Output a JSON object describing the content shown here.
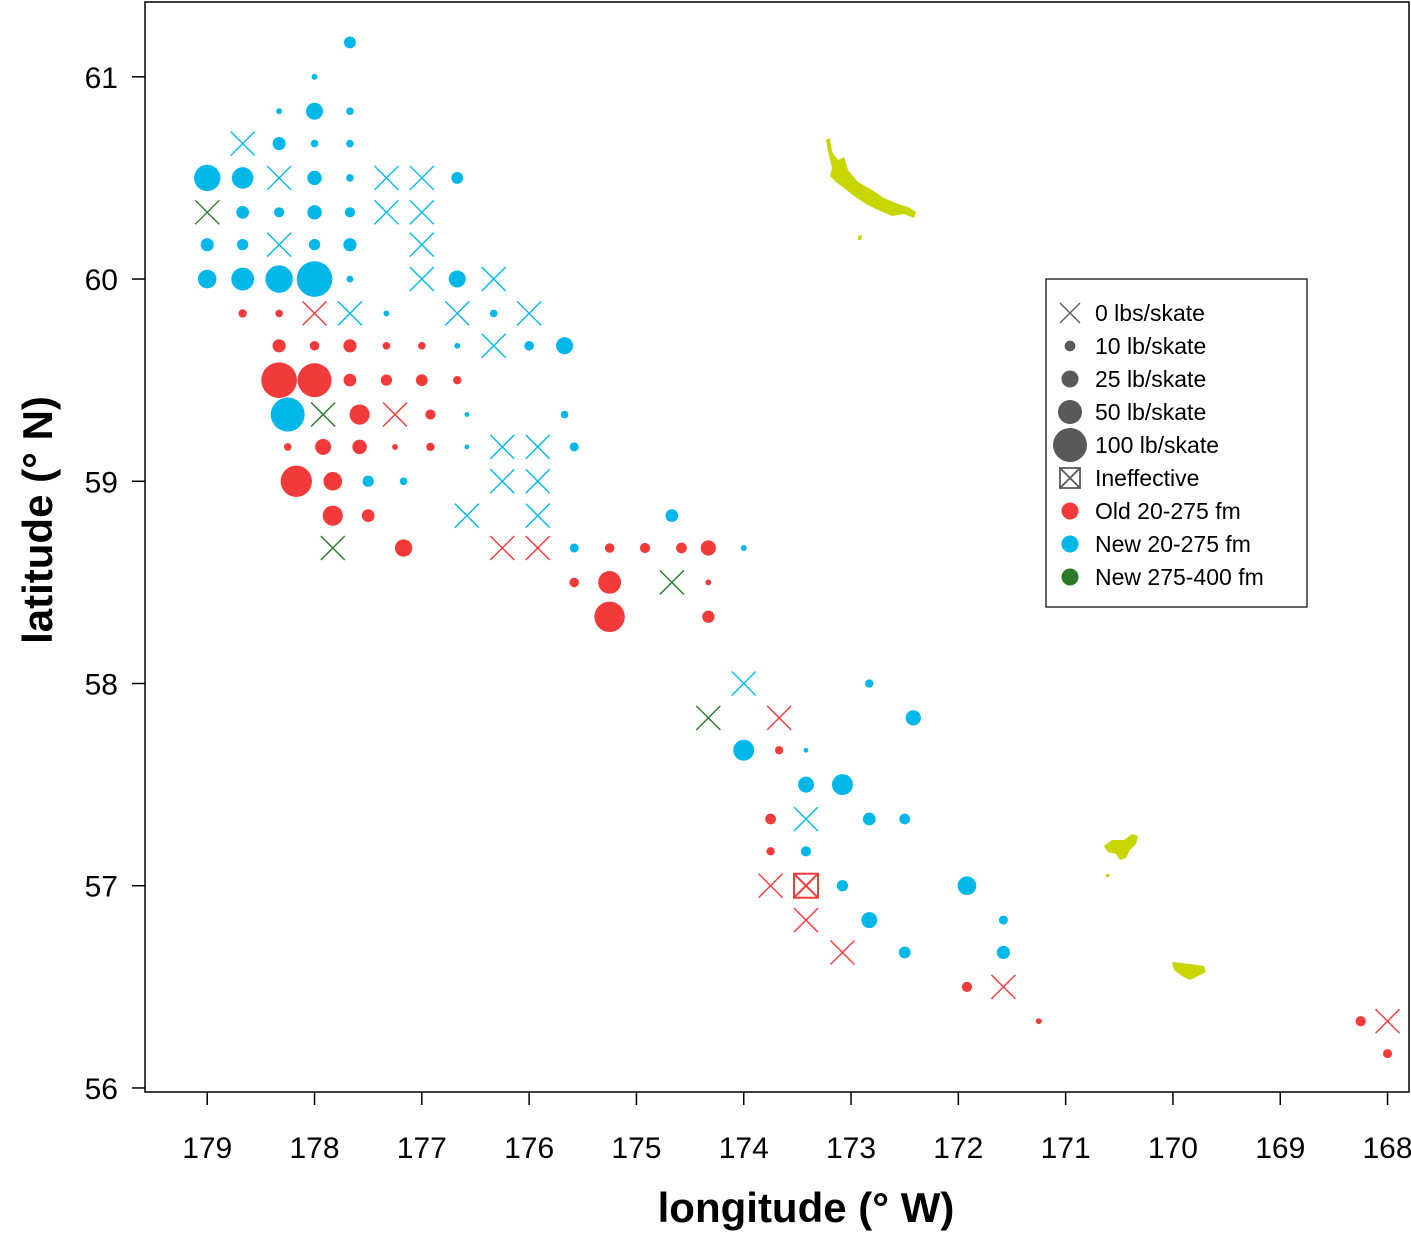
{
  "chart_data": {
    "type": "scatter",
    "xlabel": "longitude (° W)",
    "ylabel": "latitude (° N)",
    "xlim": [
      179.58,
      167.8
    ],
    "ylim": [
      55.98,
      61.37
    ],
    "x_reversed": true,
    "xticks": [
      "179",
      "178",
      "177",
      "176",
      "175",
      "174",
      "173",
      "172",
      "171",
      "170",
      "169",
      "168"
    ],
    "yticks": [
      "56",
      "57",
      "58",
      "59",
      "60",
      "61"
    ],
    "grid": false,
    "legend_position": "right",
    "colors": {
      "old": "#f23a3a",
      "new": "#00b7ea",
      "deep": "#2a7a2a",
      "land": "#c7d600",
      "legend_gray": "#595959"
    },
    "legend": [
      {
        "label": "0 lbs/skate",
        "symbol": "x"
      },
      {
        "label": "10 lb/skate",
        "symbol": "dot",
        "cpue": 10
      },
      {
        "label": "25 lb/skate",
        "symbol": "dot",
        "cpue": 25
      },
      {
        "label": "50 lb/skate",
        "symbol": "dot",
        "cpue": 50
      },
      {
        "label": "100 lb/skate",
        "symbol": "dot",
        "cpue": 100
      },
      {
        "label": "Ineffective",
        "symbol": "boxx"
      },
      {
        "label": "Old 20-275 fm",
        "symbol": "color",
        "series": "old"
      },
      {
        "label": "New 20-275 fm",
        "symbol": "color",
        "series": "new"
      },
      {
        "label": "New 275-400 fm",
        "symbol": "color",
        "series": "deep"
      }
    ],
    "points": [
      {
        "lon": 177.67,
        "lat": 61.17,
        "s": "new",
        "cpue": 12
      },
      {
        "lon": 178.0,
        "lat": 61.0,
        "s": "new",
        "cpue": 3
      },
      {
        "lon": 178.33,
        "lat": 60.83,
        "s": "new",
        "cpue": 3
      },
      {
        "lon": 178.0,
        "lat": 60.83,
        "s": "new",
        "cpue": 25
      },
      {
        "lon": 177.67,
        "lat": 60.83,
        "s": "new",
        "cpue": 5
      },
      {
        "lon": 178.67,
        "lat": 60.67,
        "s": "new",
        "cpue": 0
      },
      {
        "lon": 178.33,
        "lat": 60.67,
        "s": "new",
        "cpue": 15
      },
      {
        "lon": 178.0,
        "lat": 60.67,
        "s": "new",
        "cpue": 5
      },
      {
        "lon": 177.67,
        "lat": 60.67,
        "s": "new",
        "cpue": 5
      },
      {
        "lon": 179.0,
        "lat": 60.5,
        "s": "new",
        "cpue": 60
      },
      {
        "lon": 178.67,
        "lat": 60.5,
        "s": "new",
        "cpue": 40
      },
      {
        "lon": 178.33,
        "lat": 60.5,
        "s": "new",
        "cpue": 0
      },
      {
        "lon": 178.0,
        "lat": 60.5,
        "s": "new",
        "cpue": 18
      },
      {
        "lon": 177.67,
        "lat": 60.5,
        "s": "new",
        "cpue": 5
      },
      {
        "lon": 177.33,
        "lat": 60.5,
        "s": "new",
        "cpue": 0
      },
      {
        "lon": 177.0,
        "lat": 60.5,
        "s": "new",
        "cpue": 0
      },
      {
        "lon": 176.67,
        "lat": 60.5,
        "s": "new",
        "cpue": 12
      },
      {
        "lon": 179.0,
        "lat": 60.33,
        "s": "deep",
        "cpue": 0
      },
      {
        "lon": 178.67,
        "lat": 60.33,
        "s": "new",
        "cpue": 14
      },
      {
        "lon": 178.33,
        "lat": 60.33,
        "s": "new",
        "cpue": 9
      },
      {
        "lon": 178.0,
        "lat": 60.33,
        "s": "new",
        "cpue": 18
      },
      {
        "lon": 177.67,
        "lat": 60.33,
        "s": "new",
        "cpue": 9
      },
      {
        "lon": 177.33,
        "lat": 60.33,
        "s": "new",
        "cpue": 0
      },
      {
        "lon": 177.0,
        "lat": 60.33,
        "s": "new",
        "cpue": 0
      },
      {
        "lon": 179.0,
        "lat": 60.17,
        "s": "new",
        "cpue": 15
      },
      {
        "lon": 178.67,
        "lat": 60.17,
        "s": "new",
        "cpue": 11
      },
      {
        "lon": 178.33,
        "lat": 60.17,
        "s": "new",
        "cpue": 0
      },
      {
        "lon": 178.0,
        "lat": 60.17,
        "s": "new",
        "cpue": 11
      },
      {
        "lon": 177.67,
        "lat": 60.17,
        "s": "new",
        "cpue": 15
      },
      {
        "lon": 177.0,
        "lat": 60.17,
        "s": "new",
        "cpue": 0
      },
      {
        "lon": 179.0,
        "lat": 60.0,
        "s": "new",
        "cpue": 30
      },
      {
        "lon": 178.67,
        "lat": 60.0,
        "s": "new",
        "cpue": 45
      },
      {
        "lon": 178.33,
        "lat": 60.0,
        "s": "new",
        "cpue": 65
      },
      {
        "lon": 178.0,
        "lat": 60.0,
        "s": "new",
        "cpue": 110
      },
      {
        "lon": 177.67,
        "lat": 60.0,
        "s": "new",
        "cpue": 4
      },
      {
        "lon": 177.0,
        "lat": 60.0,
        "s": "new",
        "cpue": 0
      },
      {
        "lon": 176.67,
        "lat": 60.0,
        "s": "new",
        "cpue": 25
      },
      {
        "lon": 176.33,
        "lat": 60.0,
        "s": "new",
        "cpue": 0
      },
      {
        "lon": 178.67,
        "lat": 59.83,
        "s": "old",
        "cpue": 6
      },
      {
        "lon": 178.33,
        "lat": 59.83,
        "s": "old",
        "cpue": 5
      },
      {
        "lon": 178.0,
        "lat": 59.83,
        "s": "old",
        "cpue": 0
      },
      {
        "lon": 177.67,
        "lat": 59.83,
        "s": "new",
        "cpue": 0
      },
      {
        "lon": 177.33,
        "lat": 59.83,
        "s": "new",
        "cpue": 3
      },
      {
        "lon": 176.67,
        "lat": 59.83,
        "s": "new",
        "cpue": 0
      },
      {
        "lon": 176.33,
        "lat": 59.83,
        "s": "new",
        "cpue": 5
      },
      {
        "lon": 176.0,
        "lat": 59.83,
        "s": "new",
        "cpue": 0
      },
      {
        "lon": 178.33,
        "lat": 59.67,
        "s": "old",
        "cpue": 15
      },
      {
        "lon": 178.0,
        "lat": 59.67,
        "s": "old",
        "cpue": 8
      },
      {
        "lon": 177.67,
        "lat": 59.67,
        "s": "old",
        "cpue": 15
      },
      {
        "lon": 177.33,
        "lat": 59.67,
        "s": "old",
        "cpue": 5
      },
      {
        "lon": 177.0,
        "lat": 59.67,
        "s": "old",
        "cpue": 5
      },
      {
        "lon": 176.67,
        "lat": 59.67,
        "s": "new",
        "cpue": 3
      },
      {
        "lon": 176.33,
        "lat": 59.67,
        "s": "new",
        "cpue": 0
      },
      {
        "lon": 176.0,
        "lat": 59.67,
        "s": "new",
        "cpue": 8
      },
      {
        "lon": 175.67,
        "lat": 59.67,
        "s": "new",
        "cpue": 25
      },
      {
        "lon": 178.33,
        "lat": 59.5,
        "s": "old",
        "cpue": 110
      },
      {
        "lon": 178.0,
        "lat": 59.5,
        "s": "old",
        "cpue": 100
      },
      {
        "lon": 177.67,
        "lat": 59.5,
        "s": "old",
        "cpue": 14
      },
      {
        "lon": 177.33,
        "lat": 59.5,
        "s": "old",
        "cpue": 11
      },
      {
        "lon": 177.0,
        "lat": 59.5,
        "s": "old",
        "cpue": 12
      },
      {
        "lon": 176.67,
        "lat": 59.5,
        "s": "old",
        "cpue": 6
      },
      {
        "lon": 178.25,
        "lat": 59.33,
        "s": "new",
        "cpue": 100
      },
      {
        "lon": 177.92,
        "lat": 59.33,
        "s": "deep",
        "cpue": 0
      },
      {
        "lon": 177.58,
        "lat": 59.33,
        "s": "old",
        "cpue": 35
      },
      {
        "lon": 177.25,
        "lat": 59.33,
        "s": "old",
        "cpue": 0
      },
      {
        "lon": 176.92,
        "lat": 59.33,
        "s": "old",
        "cpue": 9
      },
      {
        "lon": 176.58,
        "lat": 59.33,
        "s": "new",
        "cpue": 2
      },
      {
        "lon": 175.67,
        "lat": 59.33,
        "s": "new",
        "cpue": 5
      },
      {
        "lon": 178.25,
        "lat": 59.17,
        "s": "old",
        "cpue": 5
      },
      {
        "lon": 177.92,
        "lat": 59.17,
        "s": "old",
        "cpue": 22
      },
      {
        "lon": 177.58,
        "lat": 59.17,
        "s": "old",
        "cpue": 18
      },
      {
        "lon": 177.25,
        "lat": 59.17,
        "s": "old",
        "cpue": 3
      },
      {
        "lon": 176.92,
        "lat": 59.17,
        "s": "old",
        "cpue": 6
      },
      {
        "lon": 176.58,
        "lat": 59.17,
        "s": "new",
        "cpue": 2
      },
      {
        "lon": 176.25,
        "lat": 59.17,
        "s": "new",
        "cpue": 0
      },
      {
        "lon": 175.92,
        "lat": 59.17,
        "s": "new",
        "cpue": 0
      },
      {
        "lon": 175.58,
        "lat": 59.17,
        "s": "new",
        "cpue": 7
      },
      {
        "lon": 178.17,
        "lat": 59.0,
        "s": "old",
        "cpue": 85
      },
      {
        "lon": 177.83,
        "lat": 59.0,
        "s": "old",
        "cpue": 30
      },
      {
        "lon": 177.5,
        "lat": 59.0,
        "s": "new",
        "cpue": 11
      },
      {
        "lon": 177.17,
        "lat": 59.0,
        "s": "new",
        "cpue": 5
      },
      {
        "lon": 176.25,
        "lat": 59.0,
        "s": "new",
        "cpue": 0
      },
      {
        "lon": 175.92,
        "lat": 59.0,
        "s": "new",
        "cpue": 0
      },
      {
        "lon": 177.83,
        "lat": 58.83,
        "s": "old",
        "cpue": 35
      },
      {
        "lon": 177.5,
        "lat": 58.83,
        "s": "old",
        "cpue": 14
      },
      {
        "lon": 176.58,
        "lat": 58.83,
        "s": "new",
        "cpue": 0
      },
      {
        "lon": 175.92,
        "lat": 58.83,
        "s": "new",
        "cpue": 0
      },
      {
        "lon": 174.67,
        "lat": 58.83,
        "s": "new",
        "cpue": 14
      },
      {
        "lon": 177.83,
        "lat": 58.67,
        "s": "deep",
        "cpue": 0
      },
      {
        "lon": 177.17,
        "lat": 58.67,
        "s": "old",
        "cpue": 26
      },
      {
        "lon": 176.25,
        "lat": 58.67,
        "s": "old",
        "cpue": 0
      },
      {
        "lon": 175.92,
        "lat": 58.67,
        "s": "old",
        "cpue": 0
      },
      {
        "lon": 175.58,
        "lat": 58.67,
        "s": "new",
        "cpue": 7
      },
      {
        "lon": 175.25,
        "lat": 58.67,
        "s": "old",
        "cpue": 8
      },
      {
        "lon": 174.92,
        "lat": 58.67,
        "s": "old",
        "cpue": 9
      },
      {
        "lon": 174.58,
        "lat": 58.67,
        "s": "old",
        "cpue": 10
      },
      {
        "lon": 174.33,
        "lat": 58.67,
        "s": "old",
        "cpue": 20
      },
      {
        "lon": 174.0,
        "lat": 58.67,
        "s": "new",
        "cpue": 3
      },
      {
        "lon": 175.58,
        "lat": 58.5,
        "s": "old",
        "cpue": 8
      },
      {
        "lon": 175.25,
        "lat": 58.5,
        "s": "old",
        "cpue": 45
      },
      {
        "lon": 174.67,
        "lat": 58.5,
        "s": "deep",
        "cpue": 0
      },
      {
        "lon": 174.33,
        "lat": 58.5,
        "s": "old",
        "cpue": 3
      },
      {
        "lon": 175.25,
        "lat": 58.33,
        "s": "old",
        "cpue": 80
      },
      {
        "lon": 174.33,
        "lat": 58.33,
        "s": "old",
        "cpue": 13
      },
      {
        "lon": 174.0,
        "lat": 58.0,
        "s": "new",
        "cpue": 0
      },
      {
        "lon": 172.83,
        "lat": 58.0,
        "s": "new",
        "cpue": 6
      },
      {
        "lon": 174.33,
        "lat": 57.83,
        "s": "deep",
        "cpue": 0
      },
      {
        "lon": 173.67,
        "lat": 57.83,
        "s": "old",
        "cpue": 0
      },
      {
        "lon": 172.42,
        "lat": 57.83,
        "s": "new",
        "cpue": 20
      },
      {
        "lon": 174.0,
        "lat": 57.67,
        "s": "new",
        "cpue": 38
      },
      {
        "lon": 173.67,
        "lat": 57.67,
        "s": "old",
        "cpue": 6
      },
      {
        "lon": 173.42,
        "lat": 57.67,
        "s": "new",
        "cpue": 2
      },
      {
        "lon": 173.42,
        "lat": 57.5,
        "s": "new",
        "cpue": 22
      },
      {
        "lon": 173.08,
        "lat": 57.5,
        "s": "new",
        "cpue": 38
      },
      {
        "lon": 173.75,
        "lat": 57.33,
        "s": "old",
        "cpue": 10
      },
      {
        "lon": 173.42,
        "lat": 57.33,
        "s": "new",
        "cpue": 0
      },
      {
        "lon": 172.83,
        "lat": 57.33,
        "s": "new",
        "cpue": 14
      },
      {
        "lon": 172.5,
        "lat": 57.33,
        "s": "new",
        "cpue": 10
      },
      {
        "lon": 173.75,
        "lat": 57.17,
        "s": "old",
        "cpue": 6
      },
      {
        "lon": 173.42,
        "lat": 57.17,
        "s": "new",
        "cpue": 9
      },
      {
        "lon": 173.75,
        "lat": 57.0,
        "s": "old",
        "cpue": 0
      },
      {
        "lon": 173.42,
        "lat": 57.0,
        "s": "old",
        "cpue": 0,
        "ineffective": true
      },
      {
        "lon": 173.08,
        "lat": 57.0,
        "s": "new",
        "cpue": 11
      },
      {
        "lon": 171.92,
        "lat": 57.0,
        "s": "new",
        "cpue": 30
      },
      {
        "lon": 173.42,
        "lat": 56.83,
        "s": "old",
        "cpue": 0
      },
      {
        "lon": 172.83,
        "lat": 56.83,
        "s": "new",
        "cpue": 22
      },
      {
        "lon": 171.58,
        "lat": 56.83,
        "s": "new",
        "cpue": 7
      },
      {
        "lon": 173.08,
        "lat": 56.67,
        "s": "old",
        "cpue": 0
      },
      {
        "lon": 172.5,
        "lat": 56.67,
        "s": "new",
        "cpue": 12
      },
      {
        "lon": 171.58,
        "lat": 56.67,
        "s": "new",
        "cpue": 15
      },
      {
        "lon": 171.92,
        "lat": 56.5,
        "s": "old",
        "cpue": 9
      },
      {
        "lon": 171.58,
        "lat": 56.5,
        "s": "old",
        "cpue": 0
      },
      {
        "lon": 171.25,
        "lat": 56.33,
        "s": "old",
        "cpue": 3
      },
      {
        "lon": 168.25,
        "lat": 56.33,
        "s": "old",
        "cpue": 9
      },
      {
        "lon": 168.0,
        "lat": 56.33,
        "s": "old",
        "cpue": 0
      },
      {
        "lon": 168.0,
        "lat": 56.17,
        "s": "old",
        "cpue": 7
      }
    ]
  }
}
